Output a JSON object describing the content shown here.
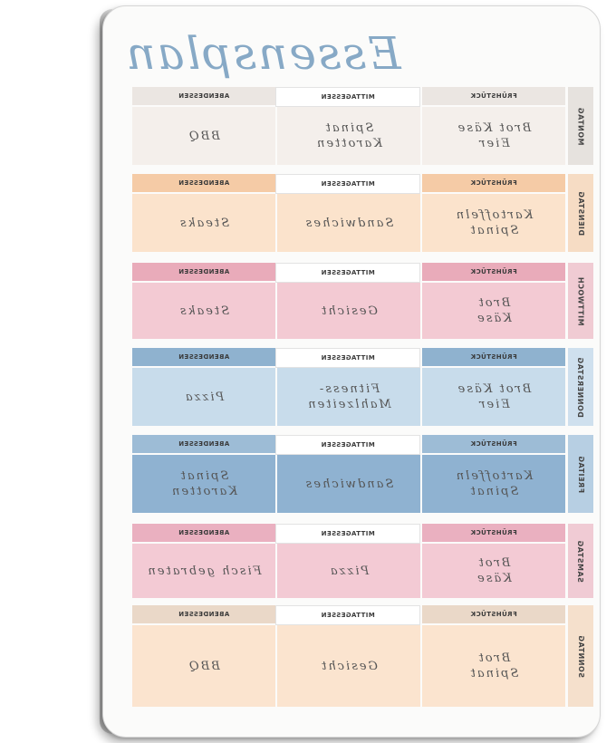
{
  "title": "Essensplan",
  "headers": {
    "breakfast": "FRÜHSTÜCK",
    "lunch": "MITTAGESSEN",
    "dinner": "ABENDESSEN"
  },
  "days": [
    {
      "name": "MONTAG",
      "breakfast": [
        "Brot Käse",
        "Eier"
      ],
      "lunch": [
        "Spinat",
        "Karotten"
      ],
      "dinner": [
        "BBQ"
      ],
      "color": "#ebe6e2",
      "light": "#f4efeb",
      "label": "#e6e2de"
    },
    {
      "name": "DIENSTAG",
      "breakfast": [
        "Kartoffeln",
        "Spinat"
      ],
      "lunch": [
        "Sandwiches"
      ],
      "dinner": [
        "Steaks"
      ],
      "color": "#f5cba6",
      "light": "#fbe3cc",
      "label": "#f6dcc4"
    },
    {
      "name": "MITTWOCH",
      "breakfast": [
        "Brot",
        "Käse"
      ],
      "lunch": [
        "Gesicht"
      ],
      "dinner": [
        "Steaks"
      ],
      "color": "#e9abba",
      "light": "#f3cad3",
      "label": "#f0cbd3"
    },
    {
      "name": "DONNERSTAG",
      "breakfast": [
        "Brot Käse",
        "Eier"
      ],
      "lunch": [
        "Fitness-",
        "Mahlzeiten"
      ],
      "dinner": [
        "Pizza"
      ],
      "color": "#8fb2cf",
      "light": "#c8dceb",
      "label": "#cfe0ee"
    },
    {
      "name": "FREITAG",
      "breakfast": [
        "Kartoffeln",
        "Spinat"
      ],
      "lunch": [
        "Sandwiches"
      ],
      "dinner": [
        "Spinat",
        "Karotten"
      ],
      "color": "#9dbcd6",
      "light": "#8fb2d1",
      "label": "#b7cfe3"
    },
    {
      "name": "SAMSTAG",
      "breakfast": [
        "Brot",
        "Käse"
      ],
      "lunch": [
        "Pizza"
      ],
      "dinner": [
        "Fisch gebraten"
      ],
      "color": "#eab0c0",
      "light": "#f3cad4",
      "label": "#f0cbd4"
    },
    {
      "name": "SONNTAG",
      "breakfast": [
        "Brot",
        "Spinat"
      ],
      "lunch": [
        "Gesicht"
      ],
      "dinner": [
        "BBQ"
      ],
      "color": "#ead8c8",
      "light": "#fbe4cf",
      "label": "#f5e0cc"
    }
  ]
}
